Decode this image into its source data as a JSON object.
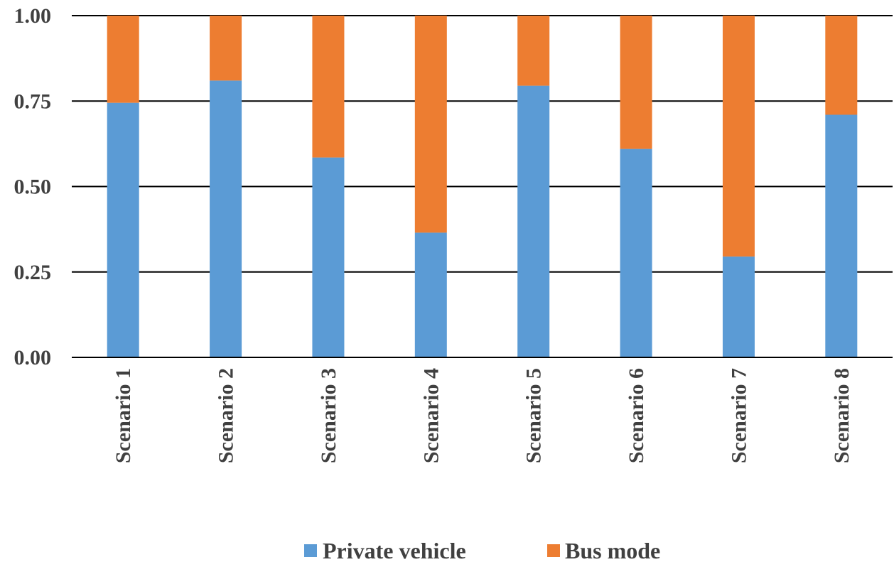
{
  "chart_data": {
    "type": "bar",
    "stacked": true,
    "categories": [
      "Scenario 1",
      "Scenario 2",
      "Scenario 3",
      "Scenario 4",
      "Scenario 5",
      "Scenario 6",
      "Scenario 7",
      "Scenario 8"
    ],
    "series": [
      {
        "name": "Private vehicle",
        "color": "#5B9BD5",
        "values": [
          0.745,
          0.81,
          0.585,
          0.365,
          0.795,
          0.61,
          0.295,
          0.71
        ]
      },
      {
        "name": "Bus mode",
        "color": "#ED7D31",
        "values": [
          0.255,
          0.19,
          0.415,
          0.635,
          0.205,
          0.39,
          0.705,
          0.29
        ]
      }
    ],
    "y_ticks": [
      "0.00",
      "0.25",
      "0.50",
      "0.75",
      "1.00"
    ],
    "ylim": [
      0,
      1
    ],
    "grid": true,
    "legend_position": "bottom",
    "title": "",
    "xlabel": "",
    "ylabel": ""
  }
}
